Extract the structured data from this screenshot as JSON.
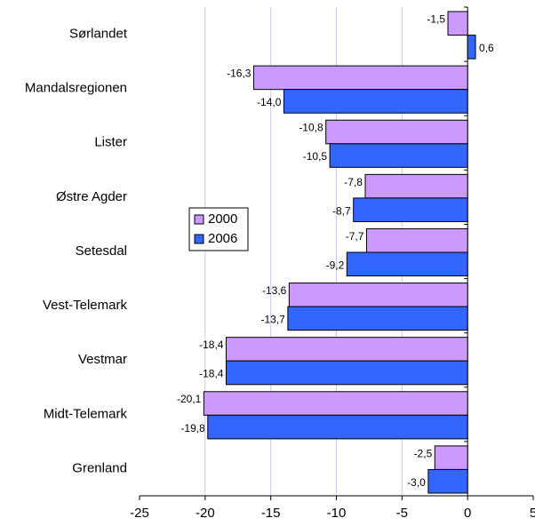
{
  "chart_data": {
    "type": "bar",
    "orientation": "horizontal",
    "categories": [
      "Sørlandet",
      "Mandalsregionen",
      "Lister",
      "Østre Agder",
      "Setesdal",
      "Vest-Telemark",
      "Vestmar",
      "Midt-Telemark",
      "Grenland"
    ],
    "series": [
      {
        "name": "2000",
        "color": "#cc99ff",
        "values": [
          -1.5,
          -16.3,
          -10.8,
          -7.8,
          -7.7,
          -13.6,
          -18.4,
          -20.1,
          -2.5
        ],
        "value_labels": [
          "-1,5",
          "-16,3",
          "-10,8",
          "-7,8",
          "-7,7",
          "-13,6",
          "-18,4",
          "-20,1",
          "-2,5"
        ]
      },
      {
        "name": "2006",
        "color": "#3366ff",
        "values": [
          0.6,
          -14.0,
          -10.5,
          -8.7,
          -9.2,
          -13.7,
          -18.4,
          -19.8,
          -3.0
        ],
        "value_labels": [
          "0,6",
          "-14,0",
          "-10,5",
          "-8,7",
          "-9,2",
          "-13,7",
          "-18,4",
          "-19,8",
          "-3,0"
        ]
      }
    ],
    "xlim": [
      -25,
      5
    ],
    "xticks": [
      -25,
      -20,
      -15,
      -10,
      -5,
      0,
      5
    ],
    "grid": true
  }
}
